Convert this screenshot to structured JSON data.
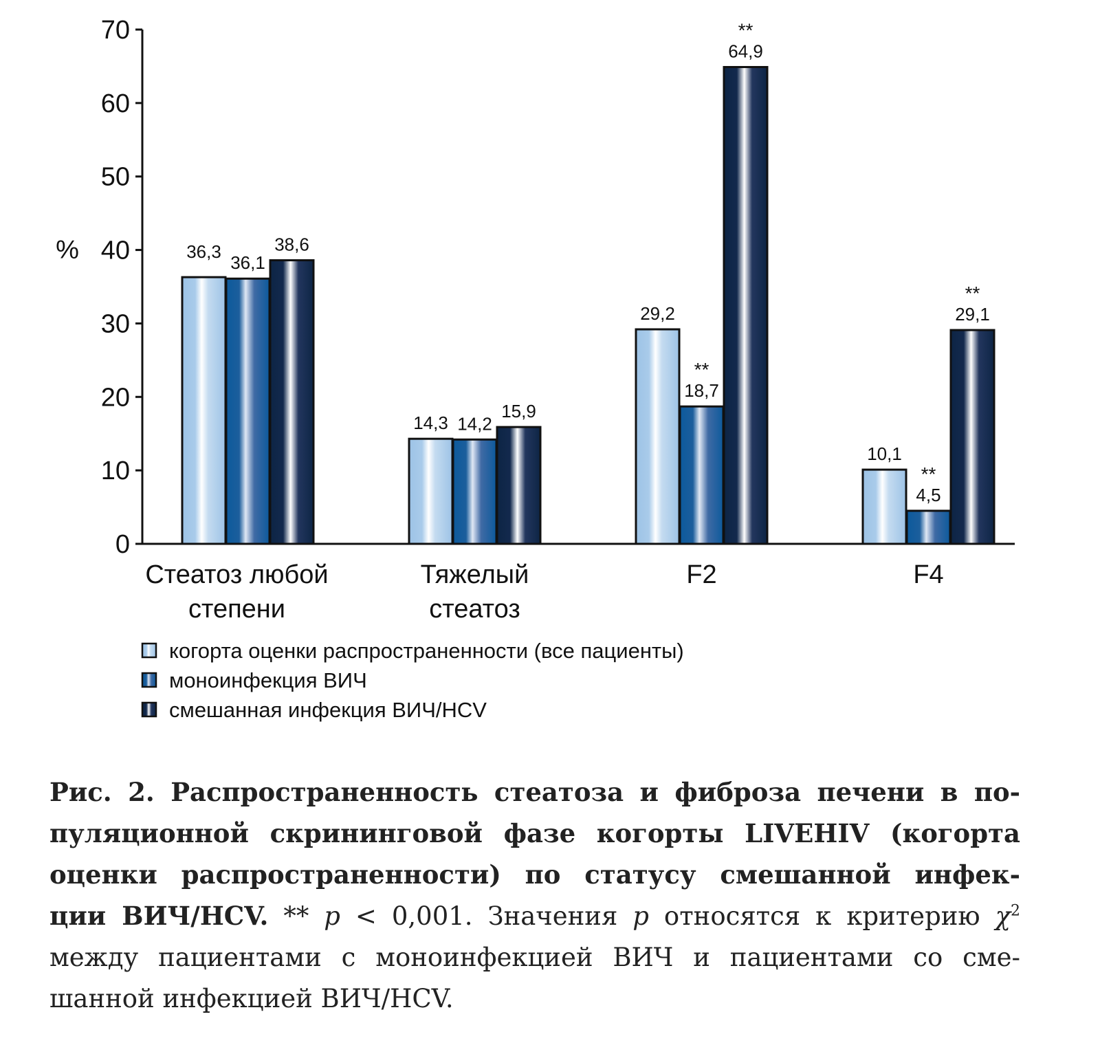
{
  "chart_data": {
    "type": "bar",
    "ylabel": "%",
    "ylim": [
      0,
      70
    ],
    "yticks": [
      0,
      10,
      20,
      30,
      40,
      50,
      60,
      70
    ],
    "categories": [
      [
        "Стеатоз любой",
        "степени"
      ],
      [
        "Тяжелый",
        "стеатоз"
      ],
      [
        "F2"
      ],
      [
        "F4"
      ]
    ],
    "series": [
      {
        "name": "когорта оценки распространенности (все пациенты)",
        "values": [
          36.3,
          14.3,
          29.2,
          10.1
        ],
        "labels": [
          "36,3",
          "14,3",
          "29,2",
          "10,1"
        ],
        "significant": [
          false,
          false,
          false,
          false
        ],
        "color": "#9dc3e6"
      },
      {
        "name": "моноинфекция ВИЧ",
        "values": [
          36.1,
          14.2,
          18.7,
          4.5
        ],
        "labels": [
          "36,1",
          "14,2",
          "18,7",
          "4,5"
        ],
        "significant": [
          false,
          false,
          true,
          true
        ],
        "color": "#0c5a9c"
      },
      {
        "name": "смешанная инфекция ВИЧ/HCV",
        "values": [
          38.6,
          15.9,
          64.9,
          29.1
        ],
        "labels": [
          "38,6",
          "15,9",
          "64,9",
          "29,1"
        ],
        "significant": [
          false,
          false,
          true,
          true
        ],
        "color": "#0d2545"
      }
    ],
    "significance_mark": "**",
    "grid": false,
    "legend_position": "bottom-left"
  },
  "caption": {
    "line1": "Рис. 2. Распространенность стеатоза и фиброза печени в по-",
    "line2": "пуляционной скрининговой фазе когорты LIVEHIV (когорта",
    "line3": "оценки распространенности) по статусу смешанной инфек-",
    "line4_bold": "ции ВИЧ/HCV.",
    "line4_a": " ** ",
    "p": "p",
    "line4_b": " < 0,001. Значения ",
    "line4_c": " относятся к критерию ",
    "chi": "χ",
    "chi_sup": "2",
    "line5": "между пациентами с моноинфекцией ВИЧ и пациентами со сме-",
    "line6": "шанной инфекцией ВИЧ/HCV."
  }
}
